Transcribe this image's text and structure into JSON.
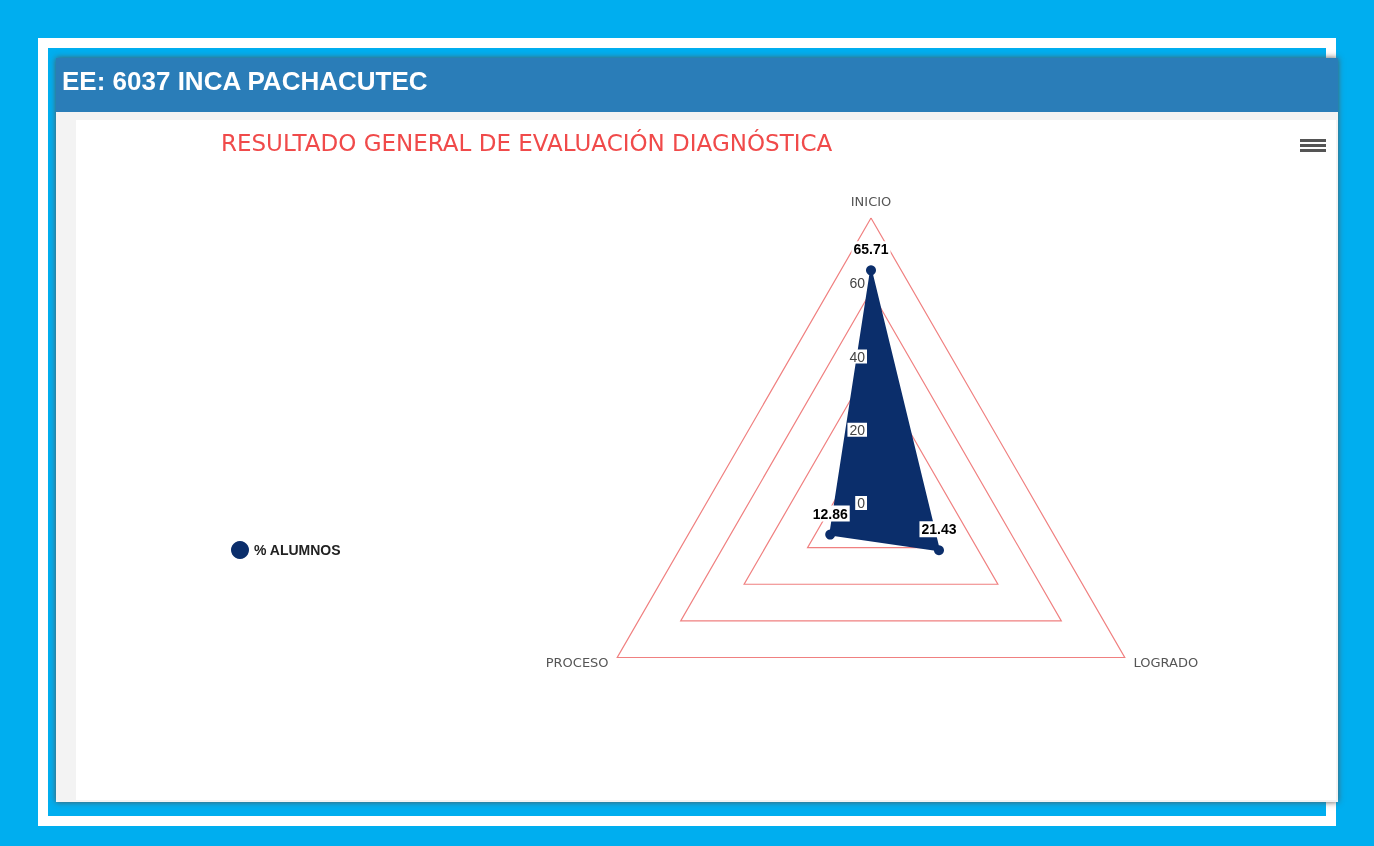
{
  "chart_data": {
    "type": "radar",
    "title": "EE: 6037 INCA PACHACUTEC",
    "subtitle": "RESULTADO GENERAL DE EVALUACIÓN DIAGNÓSTICA",
    "categories": [
      "INICIO",
      "LOGRADO",
      "PROCESO"
    ],
    "series": [
      {
        "name": "% ALUMNOS",
        "color": "#0b2e6b",
        "values": [
          65.71,
          21.43,
          12.86
        ]
      }
    ],
    "ylim": [
      0,
      80
    ],
    "yticks": [
      0,
      20,
      40,
      60
    ],
    "grid": true,
    "legend": "left",
    "marker": "circle",
    "data_labels": true
  }
}
